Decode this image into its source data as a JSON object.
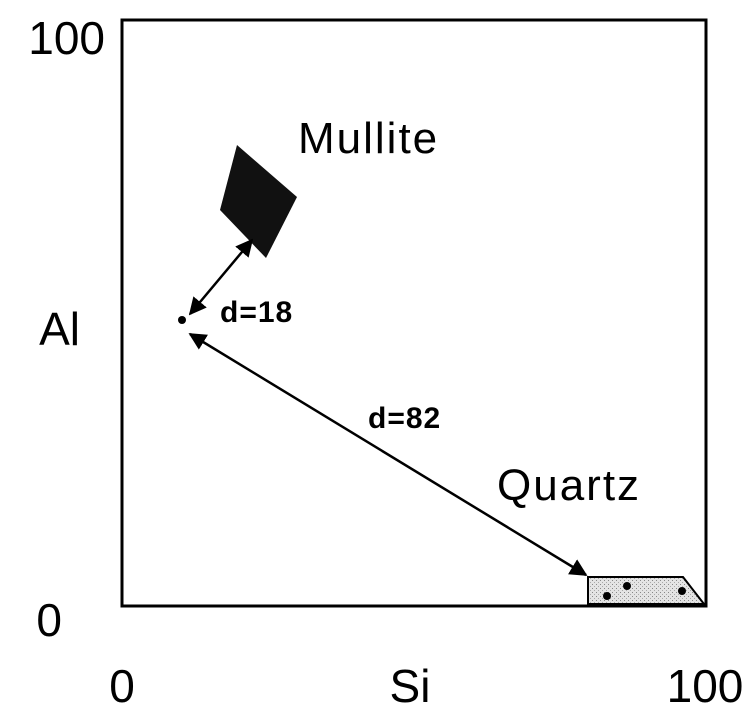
{
  "axes": {
    "y_max": "100",
    "y_min": "0",
    "y_label": "Al",
    "x_min": "0",
    "x_label": "Si",
    "x_max": "100"
  },
  "regions": {
    "mullite": "Mullite",
    "quartz": "Quartz"
  },
  "distances": {
    "to_mullite": "d=18",
    "to_quartz": "d=82"
  }
}
